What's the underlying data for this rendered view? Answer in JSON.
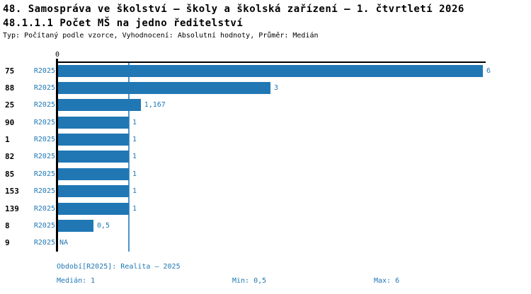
{
  "header": {
    "title": "48. Samospráva ve školství – školy a školská zařízení – 1. čtvrtletí 2026",
    "subtitle": "48.1.1.1 Počet MŠ na jedno ředitelství",
    "meta": "Typ: Počítaný podle vzorce, Vyhodnocení: Absolutní hodnoty, Průměr: Medián"
  },
  "chart_data": {
    "type": "bar",
    "orientation": "horizontal",
    "title": "48.1.1.1 Počet MŠ na jedno ředitelství",
    "xlabel": "",
    "ylabel": "",
    "x_axis": {
      "min": 0,
      "max": 6.05,
      "tick_labels": [
        "0"
      ]
    },
    "series_period": "R2025",
    "categories": [
      "75",
      "88",
      "25",
      "90",
      "1",
      "82",
      "85",
      "153",
      "139",
      "8",
      "9"
    ],
    "values": [
      6,
      3,
      1.167,
      1,
      1,
      1,
      1,
      1,
      1,
      0.5,
      null
    ],
    "value_labels": [
      "6",
      "3",
      "1,167",
      "1",
      "1",
      "1",
      "1",
      "1",
      "1",
      "0,5",
      "NA"
    ],
    "median_line_value": 1,
    "grid": false,
    "legend": "none"
  },
  "footer": {
    "period_note": "Období[R2025]: Realita – 2025",
    "median": "Medián: 1",
    "min": "Min: 0,5",
    "max": "Max: 6"
  },
  "colors": {
    "bar": "#2077B4",
    "median_line": "#4D94CC",
    "blue_text": "#2077B4",
    "axis": "#000000"
  }
}
